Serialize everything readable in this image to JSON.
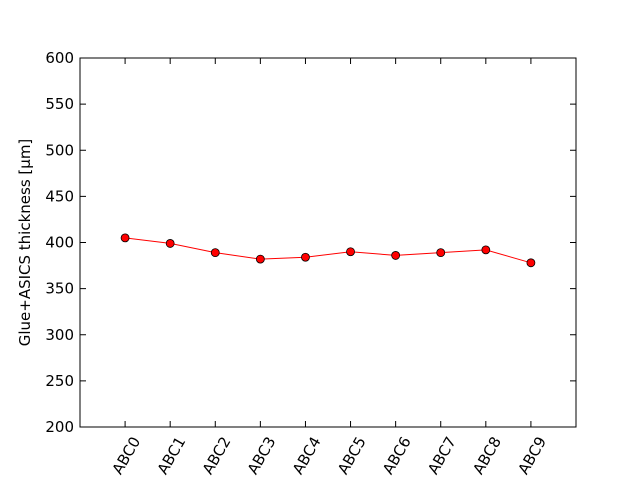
{
  "chart_data": {
    "type": "line",
    "title": "",
    "xlabel": "",
    "ylabel": "Glue+ASICS thickness [μm]",
    "ylim": [
      200,
      600
    ],
    "yticks": [
      200,
      250,
      300,
      350,
      400,
      450,
      500,
      550,
      600
    ],
    "categories": [
      "ABC0",
      "ABC1",
      "ABC2",
      "ABC3",
      "ABC4",
      "ABC5",
      "ABC6",
      "ABC7",
      "ABC8",
      "ABC9"
    ],
    "series": [
      {
        "name": "Glue+ASICS thickness",
        "values": [
          405,
          399,
          389,
          382,
          384,
          390,
          386,
          389,
          392,
          378
        ],
        "line_color": "#ff0000",
        "marker_color": "#ff0000",
        "marker_edge_color": "#000000"
      }
    ],
    "grid": false,
    "legend": "none"
  }
}
